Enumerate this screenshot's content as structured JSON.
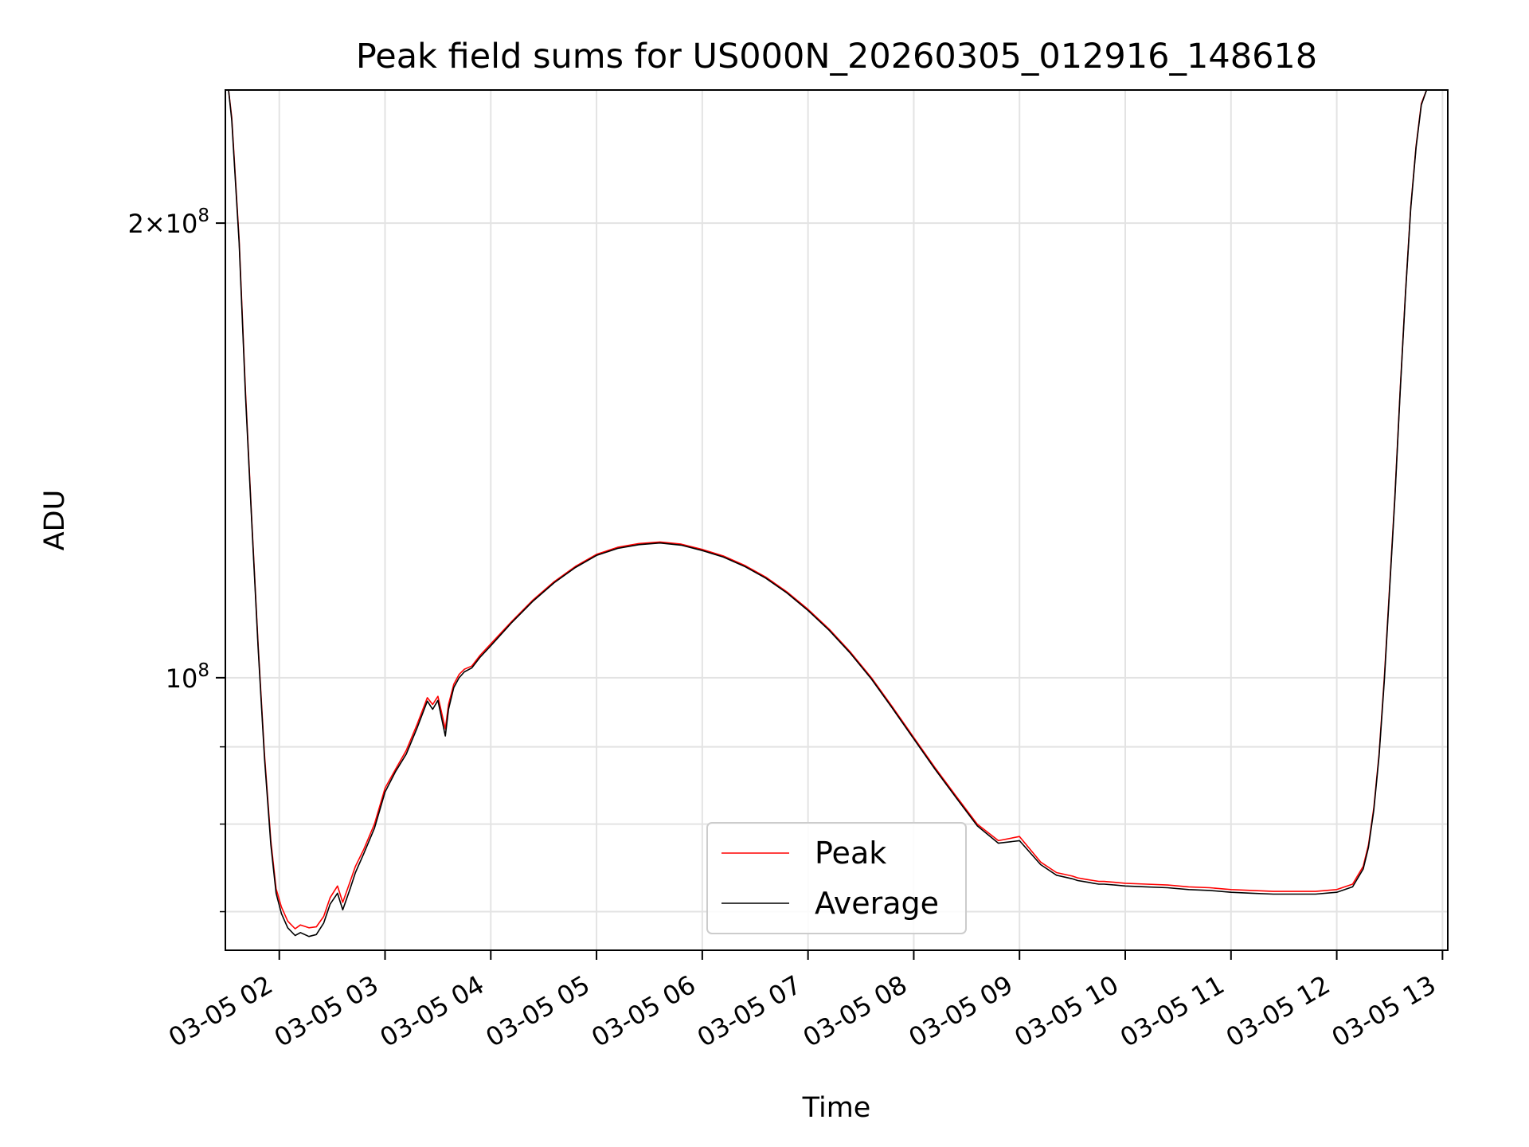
{
  "chart_data": {
    "type": "line",
    "title": "Peak field sums for US000N_20260305_012916_148618",
    "xlabel": "Time",
    "ylabel": "ADU",
    "yscale": "log",
    "xlim": [
      1.49,
      13.05
    ],
    "ylim": [
      66000000,
      245000000
    ],
    "grid": true,
    "legend_position": "lower-center",
    "x_ticks": [
      {
        "value": 2,
        "label": "03-05 02"
      },
      {
        "value": 3,
        "label": "03-05 03"
      },
      {
        "value": 4,
        "label": "03-05 04"
      },
      {
        "value": 5,
        "label": "03-05 05"
      },
      {
        "value": 6,
        "label": "03-05 06"
      },
      {
        "value": 7,
        "label": "03-05 07"
      },
      {
        "value": 8,
        "label": "03-05 08"
      },
      {
        "value": 9,
        "label": "03-05 09"
      },
      {
        "value": 10,
        "label": "03-05 10"
      },
      {
        "value": 11,
        "label": "03-05 11"
      },
      {
        "value": 12,
        "label": "03-05 12"
      },
      {
        "value": 13,
        "label": "03-05 13"
      }
    ],
    "y_major_ticks": [
      {
        "value": 200000000,
        "base": "2×10",
        "exp": "8"
      },
      {
        "value": 100000000,
        "base": "10",
        "exp": "8"
      }
    ],
    "y_minor_ticks": [
      70000000,
      80000000,
      90000000
    ],
    "series": [
      {
        "name": "Peak",
        "color": "#ff0000",
        "x": [
          1.52,
          1.55,
          1.62,
          1.68,
          1.74,
          1.8,
          1.86,
          1.92,
          1.97,
          2.02,
          2.08,
          2.15,
          2.2,
          2.28,
          2.35,
          2.42,
          2.48,
          2.55,
          2.6,
          2.67,
          2.72,
          2.8,
          2.9,
          3.0,
          3.1,
          3.2,
          3.3,
          3.4,
          3.45,
          3.5,
          3.57,
          3.6,
          3.65,
          3.7,
          3.75,
          3.82,
          3.9,
          4.0,
          4.2,
          4.4,
          4.6,
          4.8,
          5.0,
          5.2,
          5.4,
          5.6,
          5.8,
          6.0,
          6.2,
          6.4,
          6.6,
          6.8,
          7.0,
          7.2,
          7.4,
          7.6,
          7.8,
          8.0,
          8.2,
          8.4,
          8.6,
          8.8,
          9.0,
          9.2,
          9.35,
          9.5,
          9.55,
          9.6,
          9.65,
          9.7,
          9.75,
          9.8,
          9.9,
          10.0,
          10.2,
          10.4,
          10.6,
          10.8,
          11.0,
          11.2,
          11.4,
          11.6,
          11.8,
          12.0,
          12.15,
          12.25,
          12.3,
          12.35,
          12.4,
          12.45,
          12.5,
          12.55,
          12.6,
          12.65,
          12.7,
          12.75,
          12.8,
          12.85,
          12.9,
          12.95
        ],
        "y": [
          245000000,
          235000000,
          195000000,
          155000000,
          127000000,
          105000000,
          89000000,
          78000000,
          72500000,
          70500000,
          69000000,
          68200000,
          68600000,
          68300000,
          68400000,
          69500000,
          71500000,
          72800000,
          71000000,
          73300000,
          75000000,
          77000000,
          80000000,
          84500000,
          87000000,
          89500000,
          93000000,
          97000000,
          96000000,
          97200000,
          92500000,
          96000000,
          99000000,
          100500000,
          101300000,
          101800000,
          103500000,
          105300000,
          109000000,
          112600000,
          115800000,
          118500000,
          120700000,
          122000000,
          122700000,
          123000000,
          122600000,
          121600000,
          120400000,
          118700000,
          116600000,
          114000000,
          111000000,
          107700000,
          104000000,
          100000000,
          95600000,
          91300000,
          87200000,
          83500000,
          80000000,
          78000000,
          78500000,
          75500000,
          74300000,
          73900000,
          73700000,
          73600000,
          73500000,
          73400000,
          73300000,
          73300000,
          73200000,
          73100000,
          73000000,
          72900000,
          72700000,
          72600000,
          72400000,
          72300000,
          72200000,
          72200000,
          72200000,
          72400000,
          73000000,
          75000000,
          77500000,
          82000000,
          89000000,
          100000000,
          115000000,
          132000000,
          155000000,
          180000000,
          205000000,
          225000000,
          240000000,
          245000000,
          245000000,
          245000000
        ]
      },
      {
        "name": "Average",
        "color": "#000000",
        "x": [
          1.52,
          1.55,
          1.62,
          1.68,
          1.74,
          1.8,
          1.86,
          1.92,
          1.97,
          2.02,
          2.08,
          2.15,
          2.2,
          2.28,
          2.35,
          2.42,
          2.48,
          2.55,
          2.6,
          2.67,
          2.72,
          2.8,
          2.9,
          3.0,
          3.1,
          3.2,
          3.3,
          3.4,
          3.45,
          3.5,
          3.57,
          3.6,
          3.65,
          3.7,
          3.75,
          3.82,
          3.9,
          4.0,
          4.2,
          4.4,
          4.6,
          4.8,
          5.0,
          5.2,
          5.4,
          5.6,
          5.8,
          6.0,
          6.2,
          6.4,
          6.6,
          6.8,
          7.0,
          7.2,
          7.4,
          7.6,
          7.8,
          8.0,
          8.2,
          8.4,
          8.6,
          8.8,
          9.0,
          9.2,
          9.35,
          9.5,
          9.55,
          9.6,
          9.65,
          9.7,
          9.75,
          9.8,
          9.9,
          10.0,
          10.2,
          10.4,
          10.6,
          10.8,
          11.0,
          11.2,
          11.4,
          11.6,
          11.8,
          12.0,
          12.15,
          12.25,
          12.3,
          12.35,
          12.4,
          12.45,
          12.5,
          12.55,
          12.6,
          12.65,
          12.7,
          12.75,
          12.8,
          12.85,
          12.9,
          12.95
        ],
        "y": [
          245000000,
          234000000,
          194000000,
          154000000,
          126500000,
          104500000,
          88500000,
          77500000,
          72000000,
          69800000,
          68300000,
          67500000,
          67800000,
          67400000,
          67600000,
          68800000,
          70800000,
          72000000,
          70200000,
          72500000,
          74300000,
          76500000,
          79500000,
          84000000,
          86700000,
          89000000,
          92500000,
          96500000,
          95300000,
          96600000,
          91500000,
          95300000,
          98500000,
          100000000,
          100900000,
          101500000,
          103200000,
          105000000,
          108800000,
          112400000,
          115600000,
          118300000,
          120500000,
          121800000,
          122500000,
          122800000,
          122400000,
          121400000,
          120200000,
          118500000,
          116400000,
          113800000,
          110800000,
          107500000,
          103800000,
          99800000,
          95400000,
          91100000,
          87000000,
          83300000,
          79800000,
          77700000,
          78000000,
          75200000,
          74000000,
          73600000,
          73400000,
          73300000,
          73200000,
          73100000,
          73000000,
          73000000,
          72900000,
          72800000,
          72700000,
          72600000,
          72400000,
          72300000,
          72100000,
          72000000,
          71900000,
          71900000,
          71900000,
          72100000,
          72700000,
          74700000,
          77200000,
          81700000,
          88700000,
          99500000,
          114500000,
          131500000,
          154500000,
          179500000,
          204500000,
          224500000,
          239500000,
          245000000,
          245000000,
          245000000
        ]
      }
    ]
  }
}
